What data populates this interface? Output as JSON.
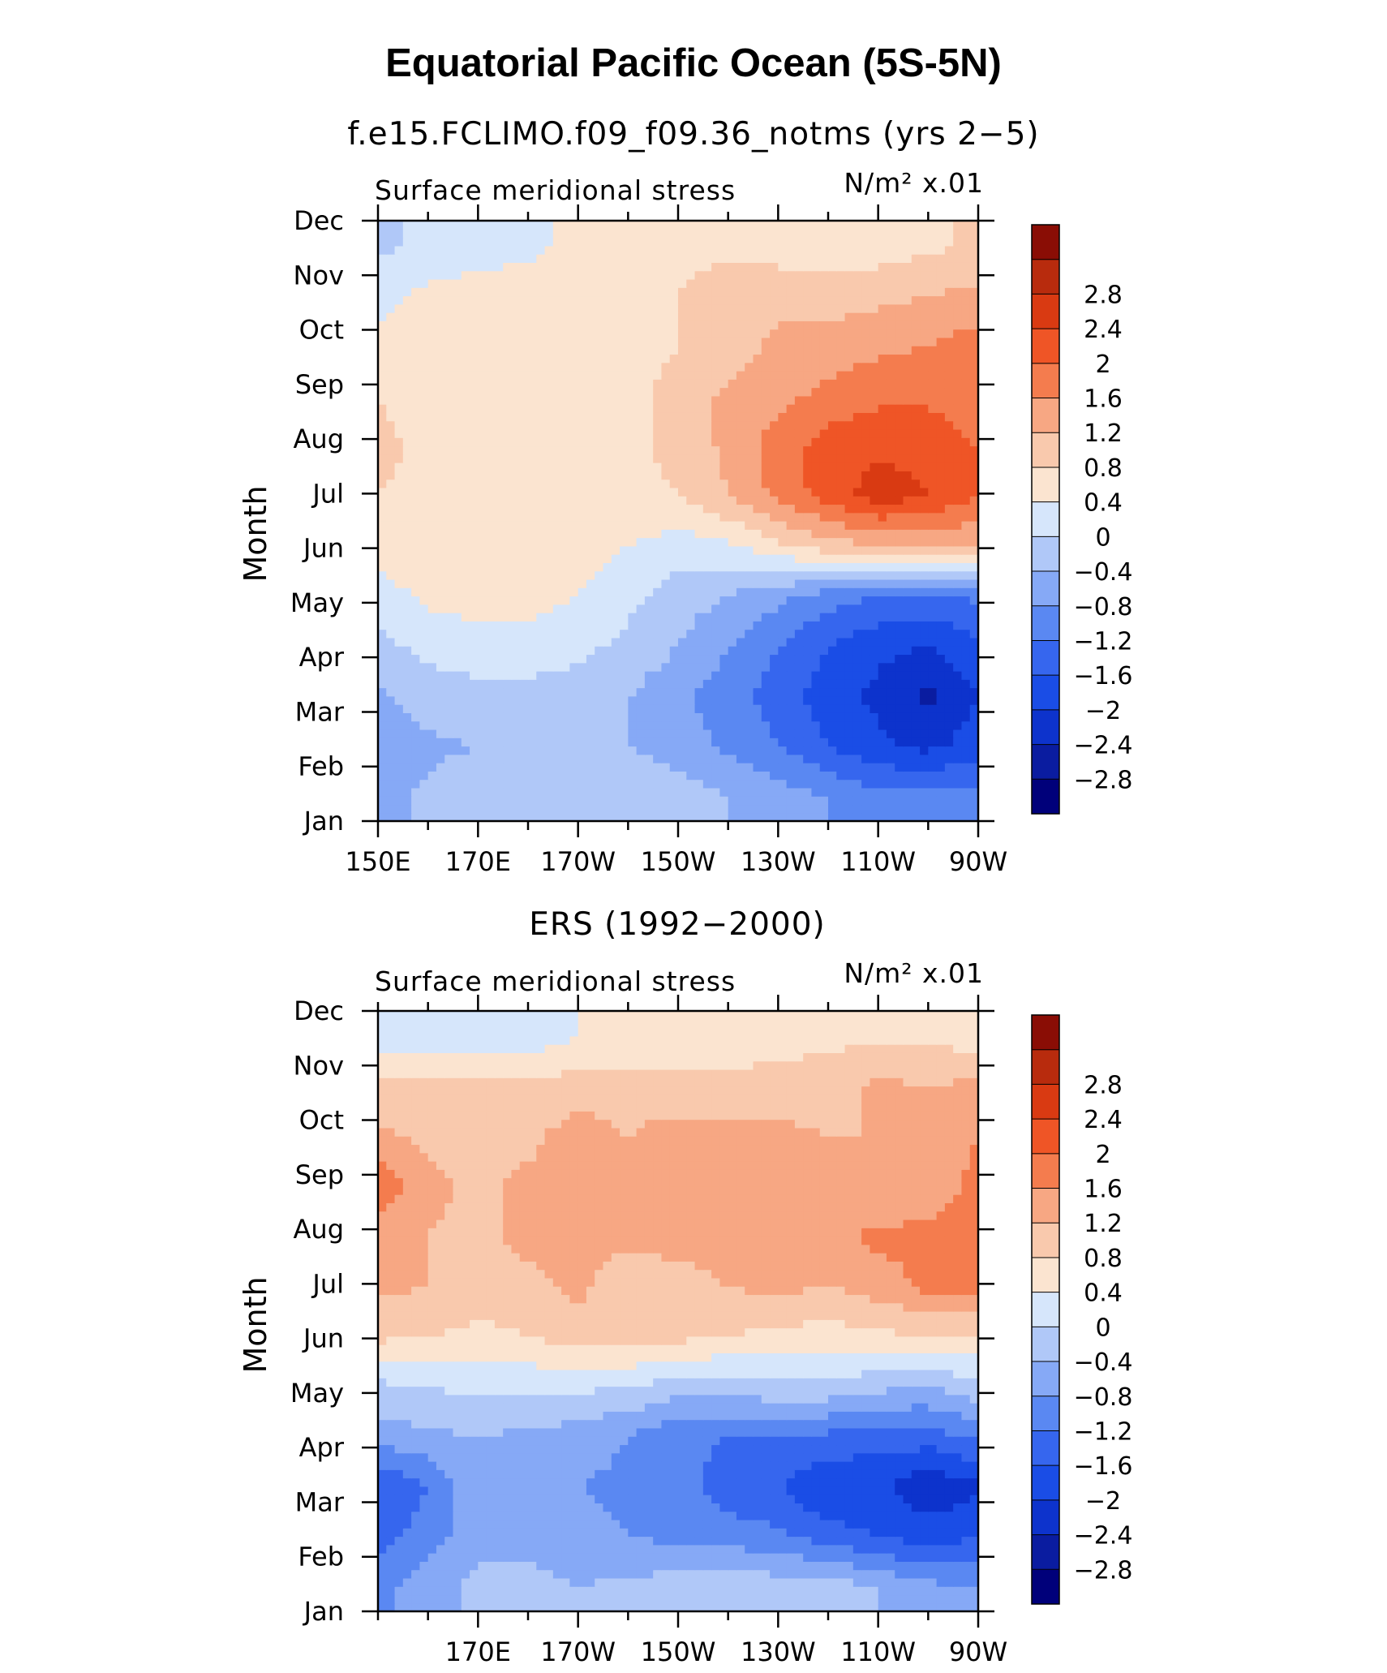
{
  "figure": {
    "title": "Equatorial Pacific Ocean (5S-5N)"
  },
  "color_scale": {
    "colors": [
      "#00007a",
      "#0a1ca0",
      "#0d33cc",
      "#1a4de6",
      "#3666ee",
      "#5a88f2",
      "#86a9f6",
      "#b0c8f8",
      "#d6e6fb",
      "#fbe4d0",
      "#f9c9ad",
      "#f7a783",
      "#f47c4e",
      "#ef5526",
      "#d93a12",
      "#b82b0d",
      "#8a0d05"
    ],
    "labels": [
      "-2.8",
      "-2.4",
      "-2",
      "-1.6",
      "-1.2",
      "-0.8",
      "-0.4",
      "0",
      "0.4",
      "0.8",
      "1.2",
      "1.6",
      "2",
      "2.4",
      "2.8"
    ]
  },
  "chart_data": [
    {
      "type": "heatmap",
      "subtitle": "f.e15.FCLIMO.f09_f09.36_notms (yrs 2−5)",
      "variable": "Surface meridional stress",
      "units": "N/m² x.01",
      "ylabel": "Month",
      "x_tick_labels": [
        "150E",
        "170E",
        "170W",
        "150W",
        "130W",
        "110W",
        "90W"
      ],
      "y_tick_labels": [
        "Jan",
        "Feb",
        "Mar",
        "Apr",
        "May",
        "Jun",
        "Jul",
        "Aug",
        "Sep",
        "Oct",
        "Nov",
        "Dec"
      ],
      "x_longitudes": [
        150,
        160,
        170,
        180,
        190,
        200,
        210,
        220,
        230,
        240,
        250,
        260,
        270
      ],
      "values": [
        [
          -1.0,
          -0.7,
          -0.5,
          -0.5,
          -0.4,
          -0.5,
          -0.6,
          -0.8,
          -1.0,
          -1.2,
          -1.5,
          -1.5,
          -1.4
        ],
        [
          -1.2,
          -0.9,
          -0.8,
          -0.7,
          -0.7,
          -0.8,
          -1.0,
          -1.3,
          -1.6,
          -2.0,
          -2.3,
          -2.5,
          -2.2
        ],
        [
          -0.9,
          -0.6,
          -0.5,
          -0.5,
          -0.6,
          -0.8,
          -1.1,
          -1.4,
          -1.8,
          -2.2,
          -2.5,
          -2.9,
          -2.4
        ],
        [
          -0.5,
          -0.3,
          -0.2,
          -0.2,
          -0.3,
          -0.5,
          -0.8,
          -1.2,
          -1.6,
          -2.0,
          -2.3,
          -2.4,
          -2.1
        ],
        [
          -0.2,
          0.1,
          0.2,
          0.2,
          0.0,
          -0.3,
          -0.6,
          -0.8,
          -1.1,
          -1.4,
          -1.6,
          -1.7,
          -1.5
        ],
        [
          0.2,
          0.3,
          0.3,
          0.3,
          0.2,
          0.0,
          -0.2,
          -0.1,
          0.3,
          0.6,
          0.8,
          0.9,
          0.8
        ],
        [
          0.4,
          0.3,
          0.3,
          0.3,
          0.3,
          0.3,
          0.4,
          0.8,
          1.3,
          1.8,
          2.2,
          2.0,
          1.6
        ],
        [
          0.5,
          0.3,
          0.3,
          0.3,
          0.3,
          0.3,
          0.5,
          0.9,
          1.4,
          1.8,
          1.9,
          1.9,
          1.6
        ],
        [
          0.4,
          0.2,
          0.2,
          0.2,
          0.2,
          0.3,
          0.5,
          0.9,
          1.1,
          1.3,
          1.5,
          1.5,
          1.3
        ],
        [
          0.1,
          0.2,
          0.2,
          0.2,
          0.2,
          0.3,
          0.4,
          0.6,
          0.9,
          1.0,
          1.1,
          1.2,
          1.4
        ],
        [
          -0.1,
          0.1,
          0.2,
          0.2,
          0.2,
          0.3,
          0.4,
          0.6,
          0.7,
          0.6,
          0.7,
          0.8,
          0.9
        ],
        [
          -0.5,
          -0.3,
          -0.2,
          -0.1,
          0.1,
          0.2,
          0.3,
          0.3,
          0.2,
          0.1,
          0.2,
          0.3,
          0.5
        ]
      ],
      "colorbar": true
    },
    {
      "type": "heatmap",
      "subtitle": "ERS (1992−2000)",
      "variable": "Surface meridional stress",
      "units": "N/m² x.01",
      "ylabel": "Month",
      "x_tick_labels": [
        "170E",
        "170W",
        "150W",
        "130W",
        "110W",
        "90W"
      ],
      "y_tick_labels": [
        "Jan",
        "Feb",
        "Mar",
        "Apr",
        "May",
        "Jun",
        "Jul",
        "Aug",
        "Sep",
        "Oct",
        "Nov",
        "Dec"
      ],
      "x_longitudes": [
        150,
        160,
        170,
        180,
        190,
        200,
        210,
        220,
        230,
        240,
        250,
        260,
        270
      ],
      "values": [
        [
          -1.3,
          -1.0,
          -0.7,
          -0.6,
          -0.8,
          -0.7,
          -0.6,
          -0.5,
          -0.6,
          -0.6,
          -0.8,
          -1.1,
          -1.2
        ],
        [
          -1.8,
          -1.4,
          -0.9,
          -1.0,
          -1.1,
          -1.2,
          -1.3,
          -1.4,
          -1.5,
          -1.8,
          -2.0,
          -2.2,
          -2.0
        ],
        [
          -2.0,
          -1.6,
          -0.9,
          -1.1,
          -1.2,
          -1.3,
          -1.4,
          -1.8,
          -2.0,
          -2.4,
          -2.3,
          -2.7,
          -2.5
        ],
        [
          -1.0,
          -0.9,
          -0.8,
          -0.9,
          -1.0,
          -1.2,
          -1.5,
          -1.6,
          -1.6,
          -1.7,
          -1.8,
          -1.8,
          -1.5
        ],
        [
          -0.5,
          -0.4,
          -0.3,
          -0.3,
          -0.3,
          -0.4,
          -0.6,
          -0.6,
          -0.5,
          -0.5,
          -0.7,
          -0.8,
          -0.5
        ],
        [
          0.5,
          0.4,
          0.3,
          0.4,
          0.6,
          0.6,
          0.5,
          0.4,
          0.3,
          0.2,
          0.3,
          0.4,
          0.3
        ],
        [
          0.9,
          0.8,
          0.6,
          0.7,
          0.9,
          0.5,
          0.6,
          0.8,
          0.9,
          0.8,
          1.0,
          1.3,
          1.5
        ],
        [
          1.0,
          0.8,
          0.7,
          0.9,
          1.0,
          0.9,
          1.0,
          1.0,
          1.0,
          1.1,
          1.3,
          1.3,
          1.5
        ],
        [
          1.5,
          0.9,
          0.7,
          0.9,
          0.9,
          0.8,
          1.0,
          1.1,
          1.0,
          0.9,
          0.8,
          1.0,
          1.3
        ],
        [
          0.9,
          0.7,
          0.6,
          0.7,
          1.0,
          0.8,
          1.0,
          0.9,
          0.9,
          0.8,
          0.8,
          1.0,
          1.2
        ],
        [
          0.5,
          0.6,
          0.5,
          0.5,
          0.6,
          0.6,
          0.5,
          0.5,
          0.6,
          0.6,
          0.9,
          0.8,
          0.9
        ],
        [
          -0.3,
          -0.4,
          -0.3,
          -0.3,
          0.0,
          0.1,
          0.1,
          0.2,
          0.2,
          0.3,
          0.3,
          0.3,
          0.2
        ]
      ],
      "colorbar": true
    }
  ]
}
